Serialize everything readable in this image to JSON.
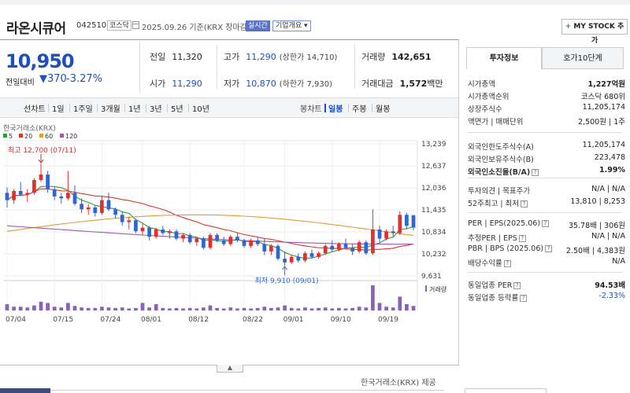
{
  "header": {
    "name": "라온시큐어",
    "code": "042510",
    "market": "코스닥",
    "basis": "2025.09.26 기준(KRX 장마감)",
    "realtime": "실시간",
    "overview": "기업개요",
    "mystock_plus": "+",
    "mystock": "MY STOCK 추가"
  },
  "price": {
    "current": "10,950",
    "change_label": "전일대비",
    "change_arrow": "▼",
    "change_amount": "370",
    "change_pct": "-3.27%"
  },
  "stats": {
    "prev_label": "전일",
    "prev": "11,320",
    "high_label": "고가",
    "high": "11,290",
    "upper_label": "(상한가",
    "upper": "14,710)",
    "volume_label": "거래량",
    "volume": "142,651",
    "open_label": "시가",
    "open": "11,290",
    "low_label": "저가",
    "low": "10,870",
    "lower_label": "(하한가",
    "lower": "7,930)",
    "amount_label": "거래대금",
    "amount": "1,572",
    "amount_unit": "백만"
  },
  "tabs": {
    "line": "선차트",
    "d1": "1일",
    "w1": "1주일",
    "m3": "3개월",
    "y1": "1년",
    "y3": "3년",
    "y5": "5년",
    "y10": "10년",
    "candle": "봉차트",
    "daily": "일봉",
    "weekly": "주봉",
    "monthly": "월봉"
  },
  "chart_data": {
    "type": "candlestick",
    "source_label": "한국거래소(KRX)",
    "ma_legend": [
      {
        "name": "5",
        "color": "#2e9b3a"
      },
      {
        "name": "20",
        "color": "#d23b2b"
      },
      {
        "name": "60",
        "color": "#e39a33"
      },
      {
        "name": "120",
        "color": "#9b59b6"
      }
    ],
    "y_ticks": [
      "13,239",
      "12,637",
      "12,036",
      "11,435",
      "10,834",
      "10,232",
      "9,631"
    ],
    "ylim": [
      9631,
      13239
    ],
    "x_ticks": [
      {
        "label": "07/04",
        "i": 0
      },
      {
        "label": "07/15",
        "i": 7
      },
      {
        "label": "07/24",
        "i": 14
      },
      {
        "label": "08/01",
        "i": 20
      },
      {
        "label": "08/12",
        "i": 27
      },
      {
        "label": "08/22",
        "i": 35
      },
      {
        "label": "09/01",
        "i": 41
      },
      {
        "label": "09/10",
        "i": 48
      },
      {
        "label": "09/19",
        "i": 55
      }
    ],
    "max_annotation": "최고 12,700 (07/11)",
    "max_index": 5,
    "min_annotation": "최저 9,910 (09/01)",
    "min_index": 41,
    "volume_label": "거래량",
    "candles": [
      {
        "o": 11900,
        "h": 12050,
        "l": 11500,
        "c": 11700
      },
      {
        "o": 11700,
        "h": 12000,
        "l": 11600,
        "c": 11950
      },
      {
        "o": 11950,
        "h": 12200,
        "l": 11800,
        "c": 11850
      },
      {
        "o": 11850,
        "h": 12000,
        "l": 11650,
        "c": 11900
      },
      {
        "o": 11900,
        "h": 12300,
        "l": 11850,
        "c": 12250
      },
      {
        "o": 12250,
        "h": 12700,
        "l": 12200,
        "c": 12400
      },
      {
        "o": 12400,
        "h": 12500,
        "l": 11900,
        "c": 12000
      },
      {
        "o": 12000,
        "h": 12050,
        "l": 11700,
        "c": 11800
      },
      {
        "o": 11800,
        "h": 11900,
        "l": 11600,
        "c": 11750
      },
      {
        "o": 11750,
        "h": 12500,
        "l": 11700,
        "c": 11900
      },
      {
        "o": 11900,
        "h": 12100,
        "l": 11550,
        "c": 11600
      },
      {
        "o": 11600,
        "h": 11750,
        "l": 11350,
        "c": 11450
      },
      {
        "o": 11450,
        "h": 11600,
        "l": 11300,
        "c": 11500
      },
      {
        "o": 11500,
        "h": 11550,
        "l": 11250,
        "c": 11350
      },
      {
        "o": 11350,
        "h": 11800,
        "l": 11300,
        "c": 11700
      },
      {
        "o": 11700,
        "h": 11900,
        "l": 11400,
        "c": 11450
      },
      {
        "o": 11450,
        "h": 11500,
        "l": 11200,
        "c": 11300
      },
      {
        "o": 11300,
        "h": 11400,
        "l": 11000,
        "c": 11100
      },
      {
        "o": 11100,
        "h": 11250,
        "l": 10900,
        "c": 11150
      },
      {
        "o": 11150,
        "h": 11200,
        "l": 10800,
        "c": 10850
      },
      {
        "o": 10850,
        "h": 11050,
        "l": 10750,
        "c": 10950
      },
      {
        "o": 10950,
        "h": 11000,
        "l": 10600,
        "c": 10700
      },
      {
        "o": 10700,
        "h": 10950,
        "l": 10650,
        "c": 10900
      },
      {
        "o": 10900,
        "h": 11000,
        "l": 10750,
        "c": 10800
      },
      {
        "o": 10800,
        "h": 10900,
        "l": 10650,
        "c": 10850
      },
      {
        "o": 10850,
        "h": 10900,
        "l": 10600,
        "c": 10650
      },
      {
        "o": 10650,
        "h": 10800,
        "l": 10550,
        "c": 10750
      },
      {
        "o": 10750,
        "h": 10800,
        "l": 10500,
        "c": 10550
      },
      {
        "o": 10550,
        "h": 10700,
        "l": 10450,
        "c": 10650
      },
      {
        "o": 10650,
        "h": 10700,
        "l": 10350,
        "c": 10400
      },
      {
        "o": 10400,
        "h": 10800,
        "l": 10350,
        "c": 10750
      },
      {
        "o": 10750,
        "h": 10800,
        "l": 10550,
        "c": 10600
      },
      {
        "o": 10600,
        "h": 10700,
        "l": 10450,
        "c": 10500
      },
      {
        "o": 10500,
        "h": 10750,
        "l": 10450,
        "c": 10700
      },
      {
        "o": 10700,
        "h": 10800,
        "l": 10550,
        "c": 10600
      },
      {
        "o": 10600,
        "h": 10650,
        "l": 10400,
        "c": 10450
      },
      {
        "o": 10450,
        "h": 10650,
        "l": 10400,
        "c": 10600
      },
      {
        "o": 10600,
        "h": 10700,
        "l": 10450,
        "c": 10500
      },
      {
        "o": 10500,
        "h": 10650,
        "l": 10200,
        "c": 10300
      },
      {
        "o": 10300,
        "h": 10500,
        "l": 10200,
        "c": 10450
      },
      {
        "o": 10450,
        "h": 10500,
        "l": 10050,
        "c": 10100
      },
      {
        "o": 10100,
        "h": 10300,
        "l": 9910,
        "c": 10000
      },
      {
        "o": 10000,
        "h": 10200,
        "l": 9950,
        "c": 10150
      },
      {
        "o": 10150,
        "h": 10250,
        "l": 10000,
        "c": 10050
      },
      {
        "o": 10050,
        "h": 10300,
        "l": 10000,
        "c": 10250
      },
      {
        "o": 10250,
        "h": 10350,
        "l": 10100,
        "c": 10150
      },
      {
        "o": 10150,
        "h": 10300,
        "l": 10100,
        "c": 10250
      },
      {
        "o": 10250,
        "h": 10500,
        "l": 10200,
        "c": 10450
      },
      {
        "o": 10450,
        "h": 10600,
        "l": 10300,
        "c": 10350
      },
      {
        "o": 10350,
        "h": 10550,
        "l": 10300,
        "c": 10500
      },
      {
        "o": 10500,
        "h": 10650,
        "l": 10350,
        "c": 10400
      },
      {
        "o": 10400,
        "h": 10500,
        "l": 10200,
        "c": 10300
      },
      {
        "o": 10300,
        "h": 10600,
        "l": 10250,
        "c": 10550
      },
      {
        "o": 10550,
        "h": 10600,
        "l": 10200,
        "c": 10250
      },
      {
        "o": 10250,
        "h": 11450,
        "l": 10200,
        "c": 10900
      },
      {
        "o": 10900,
        "h": 11000,
        "l": 10550,
        "c": 10650
      },
      {
        "o": 10650,
        "h": 10900,
        "l": 10600,
        "c": 10850
      },
      {
        "o": 10850,
        "h": 11000,
        "l": 10700,
        "c": 10800
      },
      {
        "o": 10800,
        "h": 11400,
        "l": 10750,
        "c": 11300
      },
      {
        "o": 11300,
        "h": 11350,
        "l": 10900,
        "c": 11000
      },
      {
        "o": 11290,
        "h": 11290,
        "l": 10870,
        "c": 10950
      }
    ],
    "volumes": [
      0.25,
      0.15,
      0.15,
      0.12,
      0.2,
      0.35,
      0.3,
      0.15,
      0.12,
      0.3,
      0.18,
      0.12,
      0.1,
      0.1,
      0.15,
      0.12,
      0.1,
      0.12,
      0.08,
      0.1,
      0.3,
      0.12,
      0.25,
      0.1,
      0.08,
      0.1,
      0.08,
      0.1,
      0.08,
      0.12,
      0.2,
      0.1,
      0.08,
      0.12,
      0.08,
      0.1,
      0.08,
      0.1,
      0.15,
      0.1,
      0.12,
      0.2,
      0.1,
      0.08,
      0.12,
      0.08,
      0.1,
      0.12,
      0.08,
      0.1,
      0.08,
      0.1,
      0.15,
      0.12,
      1.0,
      0.3,
      0.15,
      0.12,
      0.55,
      0.25,
      0.18
    ]
  },
  "collapse_icon": "▲",
  "footer": {
    "source": "한국거래소(KRX) 제공"
  },
  "side": {
    "tab_active": "투자정보",
    "tab_inactive": "호가10단계",
    "rows": [
      {
        "k": "시가총액",
        "v": "1,227억원",
        "bold": true
      },
      {
        "k": "시가총액순위",
        "v": "코스닥 680위"
      },
      {
        "k": "상장주식수",
        "v": "11,205,174"
      },
      {
        "k": "액면가 | 매매단위",
        "v": "2,500원 | 1주"
      },
      {
        "k": "외국인한도주식수(A)",
        "v": "11,205,174"
      },
      {
        "k": "외국인보유주식수(B)",
        "v": "223,478"
      },
      {
        "k": "외국인소진율(B/A)",
        "v": "1.99%",
        "bold": true,
        "kbold": true,
        "q": true
      },
      {
        "k": "투자의견 | 목표주가",
        "v": "N/A | N/A"
      },
      {
        "k": "52주최고 | 최저",
        "v": "13,810 | 8,253",
        "q": true
      },
      {
        "k": "PER | EPS(2025.06)",
        "v": "35.78배 | 306원",
        "q": true
      },
      {
        "k": "추정PER | EPS",
        "v": "N/A | N/A",
        "q": true
      },
      {
        "k": "PBR | BPS (2025.06)",
        "v": "2.50배 | 4,383원",
        "q": true
      },
      {
        "k": "배당수익률",
        "v": "N/A",
        "q": true
      },
      {
        "k": "동일업종 PER",
        "v": "94.53배",
        "bold": true,
        "q": true
      },
      {
        "k": "동일업종 등락률",
        "v": "-2.33%",
        "blue": true,
        "q": true
      }
    ]
  }
}
